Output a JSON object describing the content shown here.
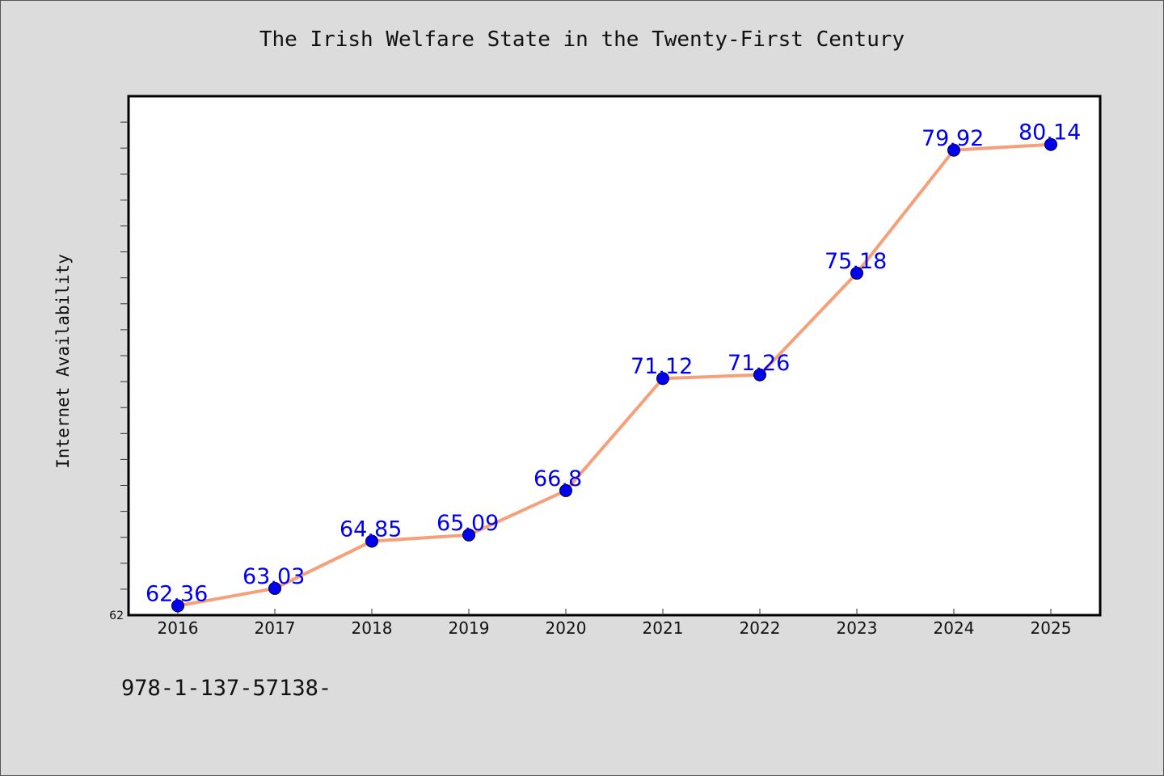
{
  "chart_data": {
    "type": "line",
    "title": "The Irish Welfare State in the Twenty-First Century",
    "xlabel": "",
    "ylabel": "Internet Availability",
    "categories": [
      "2016",
      "2017",
      "2018",
      "2019",
      "2020",
      "2021",
      "2022",
      "2023",
      "2024",
      "2025"
    ],
    "series": [
      {
        "values": [
          62.36,
          63.03,
          64.85,
          65.09,
          66.8,
          71.12,
          71.26,
          75.18,
          79.92,
          80.14
        ],
        "data_labels": [
          "62.36",
          "63.03",
          "64.85",
          "65.09",
          "66.8",
          "71.12",
          "71.26",
          "75.18",
          "79.92",
          "80.14"
        ],
        "line_color": "#f5a07a",
        "marker_color": "#0000ee"
      }
    ],
    "ylim": [
      62,
      82
    ],
    "y_tick_labels": [
      "62"
    ],
    "grid": false,
    "label_color": "#0000ee"
  },
  "footer": {
    "text": "978-1-137-57138-"
  }
}
